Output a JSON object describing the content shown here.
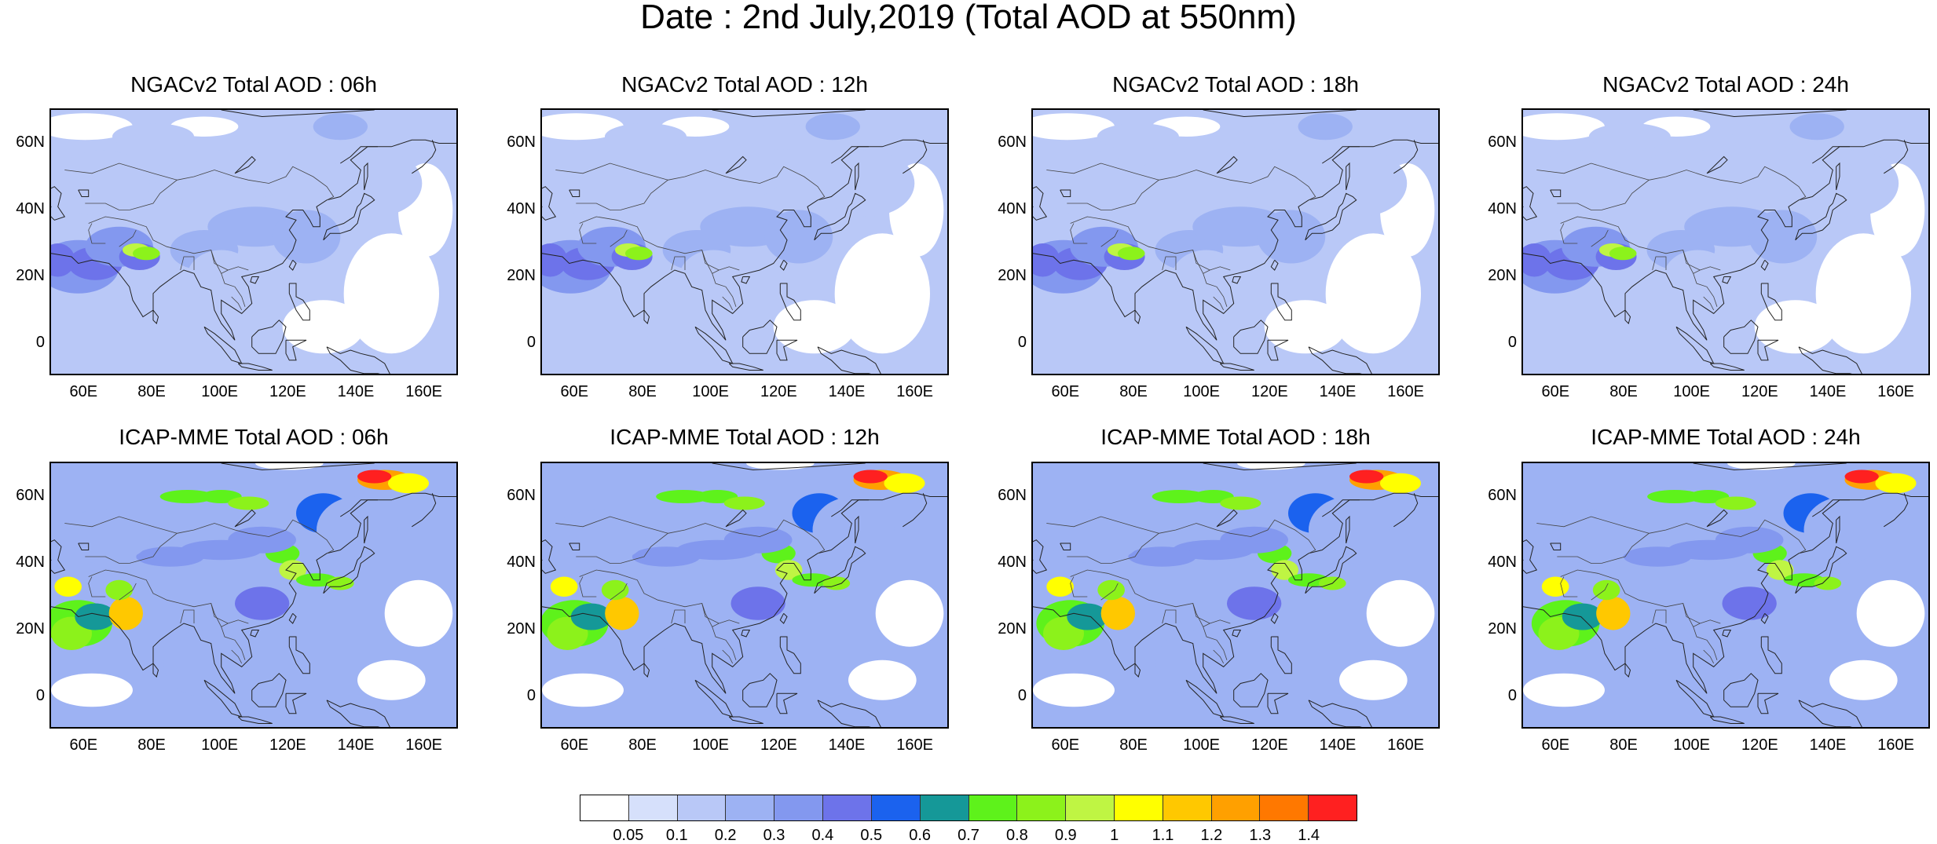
{
  "title": "Date : 2nd July,2019 (Total AOD at 550nm)",
  "panels": [
    {
      "title": "NGACv2 Total AOD : 06h",
      "model": "NGACv2",
      "level": 1
    },
    {
      "title": "NGACv2 Total AOD : 12h",
      "model": "NGACv2",
      "level": 1
    },
    {
      "title": "NGACv2 Total AOD : 18h",
      "model": "NGACv2",
      "level": 1
    },
    {
      "title": "NGACv2 Total AOD : 24h",
      "model": "NGACv2",
      "level": 1
    },
    {
      "title": "ICAP-MME Total AOD : 06h",
      "model": "ICAP-MME",
      "level": 2
    },
    {
      "title": "ICAP-MME Total AOD : 12h",
      "model": "ICAP-MME",
      "level": 2
    },
    {
      "title": "ICAP-MME Total AOD : 18h",
      "model": "ICAP-MME",
      "level": 2
    },
    {
      "title": "ICAP-MME Total AOD : 24h",
      "model": "ICAP-MME",
      "level": 2
    }
  ],
  "axes": {
    "lon_ticks": [
      "60E",
      "80E",
      "100E",
      "120E",
      "140E",
      "160E"
    ],
    "lat_ticks": [
      "60N",
      "40N",
      "20N",
      "0"
    ],
    "lon_range": [
      50,
      170
    ],
    "lat_range": [
      -10,
      70
    ]
  },
  "colorbar": {
    "labels": [
      "0.05",
      "0.1",
      "0.2",
      "0.3",
      "0.4",
      "0.5",
      "0.6",
      "0.7",
      "0.8",
      "0.9",
      "1",
      "1.1",
      "1.2",
      "1.3",
      "1.4"
    ],
    "colors": [
      "#ffffff",
      "#d6e0fb",
      "#b9c8f7",
      "#9db2f3",
      "#8398ef",
      "#6d73ea",
      "#1b62ee",
      "#159898",
      "#5ef21b",
      "#8cf21b",
      "#bff543",
      "#ffff00",
      "#ffc800",
      "#ffa000",
      "#ff7800",
      "#ff2020"
    ]
  }
}
